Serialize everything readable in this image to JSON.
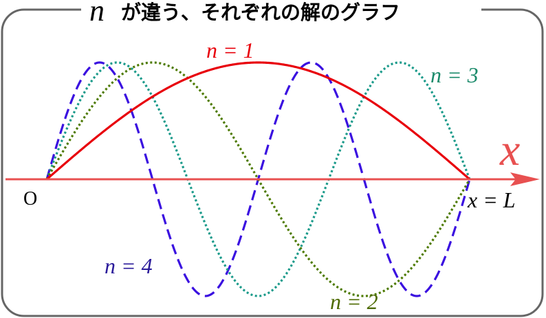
{
  "title": {
    "variable": "n",
    "text": "が違う、それぞれの解のグラフ"
  },
  "axis": {
    "label": "x",
    "origin": "O",
    "end": "x = L",
    "color": "#e85050"
  },
  "curves": [
    {
      "n": 1,
      "label": "n = 1",
      "color": "#e8000b",
      "label_color": "#e8000b",
      "style": "solid"
    },
    {
      "n": 2,
      "label": "n = 2",
      "color": "#4d7a00",
      "label_color": "#4d6a00",
      "style": "dotted"
    },
    {
      "n": 3,
      "label": "n = 3",
      "color": "#1a9a8a",
      "label_color": "#1a8a6a",
      "style": "dotted"
    },
    {
      "n": 4,
      "label": "n = 4",
      "color": "#3a10e0",
      "label_color": "#2a1a9a",
      "style": "dashed"
    }
  ]
}
